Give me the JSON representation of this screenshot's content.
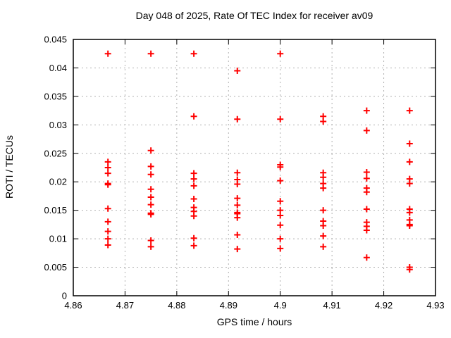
{
  "chart_data": {
    "type": "scatter",
    "title": "Day 048 of 2025, Rate Of TEC Index for receiver av09",
    "xlabel": "GPS time / hours",
    "ylabel": "ROTI / TECUs",
    "xlim": [
      4.86,
      4.93
    ],
    "ylim": [
      0,
      0.045
    ],
    "grid": true,
    "legend": "none",
    "marker": {
      "shape": "plus",
      "color": "#ff0000",
      "size": 9
    },
    "frame_color": "#000000",
    "grid_color": "#b0b0b0",
    "xticks": {
      "values": [
        4.86,
        4.87,
        4.88,
        4.89,
        4.9,
        4.91,
        4.92,
        4.93
      ],
      "labels": [
        "4.86",
        "4.87",
        "4.88",
        "4.89",
        "4.9",
        "4.91",
        "4.92",
        "4.93"
      ]
    },
    "yticks": {
      "values": [
        0,
        0.005,
        0.01,
        0.015,
        0.02,
        0.025,
        0.03,
        0.035,
        0.04,
        0.045
      ],
      "labels": [
        "0",
        "0.005",
        "0.01",
        "0.015",
        "0.02",
        "0.025",
        "0.03",
        "0.035",
        "0.04",
        "0.045"
      ]
    },
    "series": [
      {
        "name": "ROTI",
        "points": [
          [
            4.8667,
            0.0425
          ],
          [
            4.8667,
            0.0235
          ],
          [
            4.8667,
            0.0225
          ],
          [
            4.8667,
            0.0215
          ],
          [
            4.8667,
            0.0197
          ],
          [
            4.8667,
            0.0195
          ],
          [
            4.8667,
            0.0153
          ],
          [
            4.8667,
            0.013
          ],
          [
            4.8667,
            0.0113
          ],
          [
            4.8667,
            0.01
          ],
          [
            4.8667,
            0.0089
          ],
          [
            4.875,
            0.0425
          ],
          [
            4.875,
            0.0255
          ],
          [
            4.875,
            0.0227
          ],
          [
            4.875,
            0.0213
          ],
          [
            4.875,
            0.0187
          ],
          [
            4.875,
            0.0173
          ],
          [
            4.875,
            0.016
          ],
          [
            4.875,
            0.0145
          ],
          [
            4.875,
            0.0143
          ],
          [
            4.875,
            0.0097
          ],
          [
            4.875,
            0.0086
          ],
          [
            4.8833,
            0.0425
          ],
          [
            4.8833,
            0.0315
          ],
          [
            4.8833,
            0.0215
          ],
          [
            4.8833,
            0.0205
          ],
          [
            4.8833,
            0.0193
          ],
          [
            4.8833,
            0.017
          ],
          [
            4.8833,
            0.0155
          ],
          [
            4.8833,
            0.0148
          ],
          [
            4.8833,
            0.014
          ],
          [
            4.8833,
            0.0101
          ],
          [
            4.8833,
            0.0088
          ],
          [
            4.8917,
            0.0395
          ],
          [
            4.8917,
            0.031
          ],
          [
            4.8917,
            0.0216
          ],
          [
            4.8917,
            0.0204
          ],
          [
            4.8917,
            0.0196
          ],
          [
            4.8917,
            0.0171
          ],
          [
            4.8917,
            0.0159
          ],
          [
            4.8917,
            0.0146
          ],
          [
            4.8917,
            0.0144
          ],
          [
            4.8917,
            0.0137
          ],
          [
            4.8917,
            0.0107
          ],
          [
            4.8917,
            0.0082
          ],
          [
            4.9,
            0.0425
          ],
          [
            4.9,
            0.031
          ],
          [
            4.9,
            0.023
          ],
          [
            4.9,
            0.0226
          ],
          [
            4.9,
            0.0202
          ],
          [
            4.9,
            0.0166
          ],
          [
            4.9,
            0.015
          ],
          [
            4.9,
            0.0141
          ],
          [
            4.9,
            0.0124
          ],
          [
            4.9,
            0.01
          ],
          [
            4.9,
            0.0083
          ],
          [
            4.9083,
            0.0315
          ],
          [
            4.9083,
            0.0306
          ],
          [
            4.9083,
            0.0216
          ],
          [
            4.9083,
            0.0208
          ],
          [
            4.9083,
            0.0197
          ],
          [
            4.9083,
            0.0189
          ],
          [
            4.9083,
            0.015
          ],
          [
            4.9083,
            0.0131
          ],
          [
            4.9083,
            0.0123
          ],
          [
            4.9083,
            0.0105
          ],
          [
            4.9083,
            0.0086
          ],
          [
            4.9167,
            0.0325
          ],
          [
            4.9167,
            0.029
          ],
          [
            4.9167,
            0.0217
          ],
          [
            4.9167,
            0.0206
          ],
          [
            4.9167,
            0.0189
          ],
          [
            4.9167,
            0.0182
          ],
          [
            4.9167,
            0.0152
          ],
          [
            4.9167,
            0.0129
          ],
          [
            4.9167,
            0.0122
          ],
          [
            4.9167,
            0.0115
          ],
          [
            4.9167,
            0.0067
          ],
          [
            4.925,
            0.0325
          ],
          [
            4.925,
            0.0267
          ],
          [
            4.925,
            0.0235
          ],
          [
            4.925,
            0.0205
          ],
          [
            4.925,
            0.0197
          ],
          [
            4.925,
            0.0152
          ],
          [
            4.925,
            0.0146
          ],
          [
            4.925,
            0.0133
          ],
          [
            4.925,
            0.0125
          ],
          [
            4.925,
            0.0123
          ],
          [
            4.925,
            0.005
          ],
          [
            4.925,
            0.0046
          ]
        ]
      }
    ]
  }
}
